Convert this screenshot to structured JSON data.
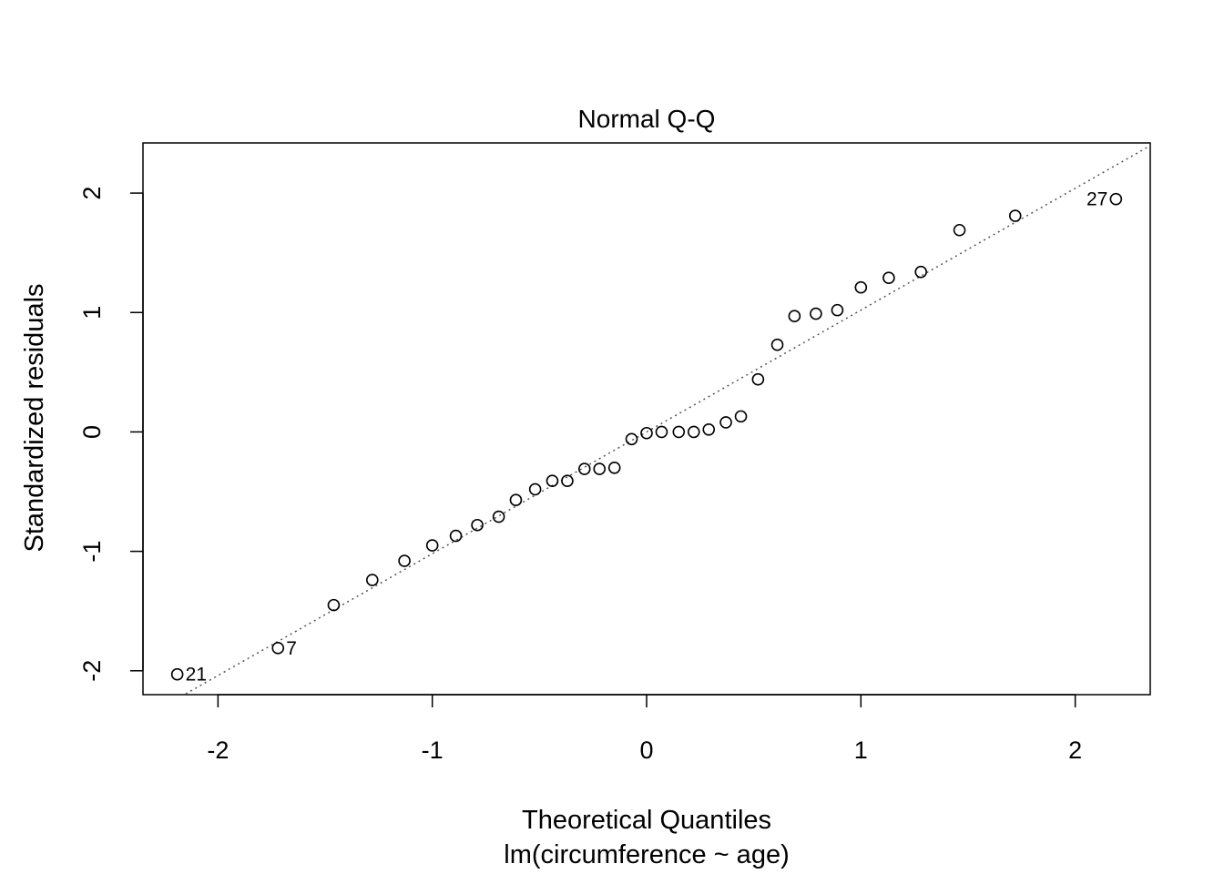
{
  "chart_data": {
    "type": "scatter",
    "title": "Normal Q-Q",
    "xlabel": "Theoretical Quantiles",
    "xlabel2": "lm(circumference ~ age)",
    "ylabel": "Standardized residuals",
    "xlim": [
      -2.35,
      2.35
    ],
    "ylim": [
      -2.2,
      2.42
    ],
    "xticks": [
      -2,
      -1,
      0,
      1,
      2
    ],
    "yticks": [
      -2,
      -1,
      0,
      1,
      2
    ],
    "xtick_labels": [
      "-2",
      "-1",
      "0",
      "1",
      "2"
    ],
    "ytick_labels": [
      "-2",
      "-1",
      "0",
      "1",
      "2"
    ],
    "grid": false,
    "legend": "none",
    "marker": "open-circle",
    "reference_line": {
      "style": "dotted",
      "color": "#555555",
      "intercept": 0.0,
      "slope": 1.02
    },
    "points": [
      {
        "x": -2.19,
        "y": -2.03,
        "label": "21"
      },
      {
        "x": -1.72,
        "y": -1.81,
        "label": "7"
      },
      {
        "x": -1.46,
        "y": -1.45
      },
      {
        "x": -1.28,
        "y": -1.24
      },
      {
        "x": -1.13,
        "y": -1.08
      },
      {
        "x": -1.0,
        "y": -0.95
      },
      {
        "x": -0.89,
        "y": -0.87
      },
      {
        "x": -0.79,
        "y": -0.78
      },
      {
        "x": -0.69,
        "y": -0.71
      },
      {
        "x": -0.61,
        "y": -0.57
      },
      {
        "x": -0.52,
        "y": -0.48
      },
      {
        "x": -0.44,
        "y": -0.41
      },
      {
        "x": -0.37,
        "y": -0.41
      },
      {
        "x": -0.29,
        "y": -0.31
      },
      {
        "x": -0.22,
        "y": -0.31
      },
      {
        "x": -0.15,
        "y": -0.3
      },
      {
        "x": -0.07,
        "y": -0.06
      },
      {
        "x": 0.0,
        "y": -0.01
      },
      {
        "x": 0.07,
        "y": 0.0
      },
      {
        "x": 0.15,
        "y": 0.0
      },
      {
        "x": 0.22,
        "y": 0.0
      },
      {
        "x": 0.29,
        "y": 0.02
      },
      {
        "x": 0.37,
        "y": 0.08
      },
      {
        "x": 0.44,
        "y": 0.13
      },
      {
        "x": 0.52,
        "y": 0.44
      },
      {
        "x": 0.61,
        "y": 0.73
      },
      {
        "x": 0.69,
        "y": 0.97
      },
      {
        "x": 0.79,
        "y": 0.99
      },
      {
        "x": 0.89,
        "y": 1.02
      },
      {
        "x": 1.0,
        "y": 1.21
      },
      {
        "x": 1.13,
        "y": 1.29
      },
      {
        "x": 1.28,
        "y": 1.34
      },
      {
        "x": 1.46,
        "y": 1.69
      },
      {
        "x": 1.72,
        "y": 1.81
      },
      {
        "x": 2.19,
        "y": 1.95,
        "label": "27"
      }
    ]
  },
  "colors": {
    "points": "#000000",
    "reference_line": "#555555",
    "axes": "#000000",
    "background": "#ffffff"
  }
}
